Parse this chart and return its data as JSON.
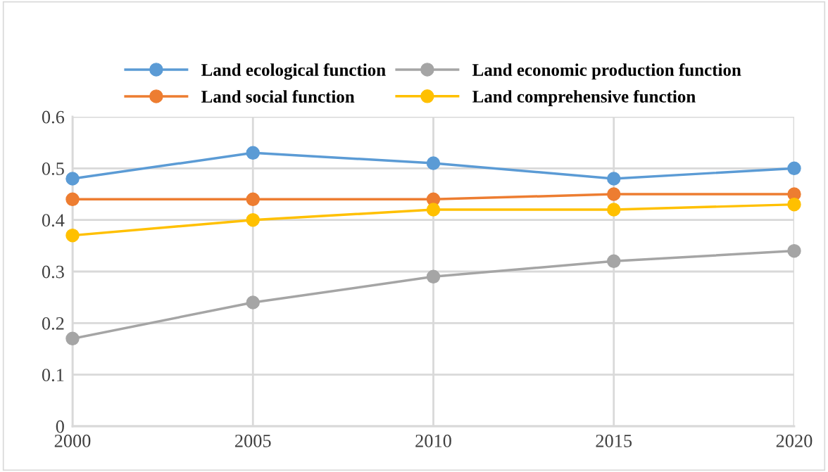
{
  "chart_data": {
    "type": "line",
    "x": [
      2000,
      2005,
      2010,
      2015,
      2020
    ],
    "series": [
      {
        "name": "Land ecological function",
        "color": "#5b9bd5",
        "values": [
          0.48,
          0.53,
          0.51,
          0.48,
          0.5
        ]
      },
      {
        "name": "Land social function",
        "color": "#ed7d31",
        "values": [
          0.44,
          0.44,
          0.44,
          0.45,
          0.45
        ]
      },
      {
        "name": "Land economic production function",
        "color": "#a5a5a5",
        "values": [
          0.17,
          0.24,
          0.29,
          0.32,
          0.34
        ]
      },
      {
        "name": "Land comprehensive function",
        "color": "#ffc000",
        "values": [
          0.37,
          0.4,
          0.42,
          0.42,
          0.43
        ]
      }
    ],
    "xlim": [
      2000,
      2020
    ],
    "xticks": [
      2000,
      2005,
      2010,
      2015,
      2020
    ],
    "ylim": [
      0,
      0.6
    ],
    "yticks": [
      0,
      0.1,
      0.2,
      0.3,
      0.4,
      0.5,
      0.6
    ],
    "grid": true,
    "legend": "top",
    "marker": "circle",
    "line_style": "solid"
  }
}
